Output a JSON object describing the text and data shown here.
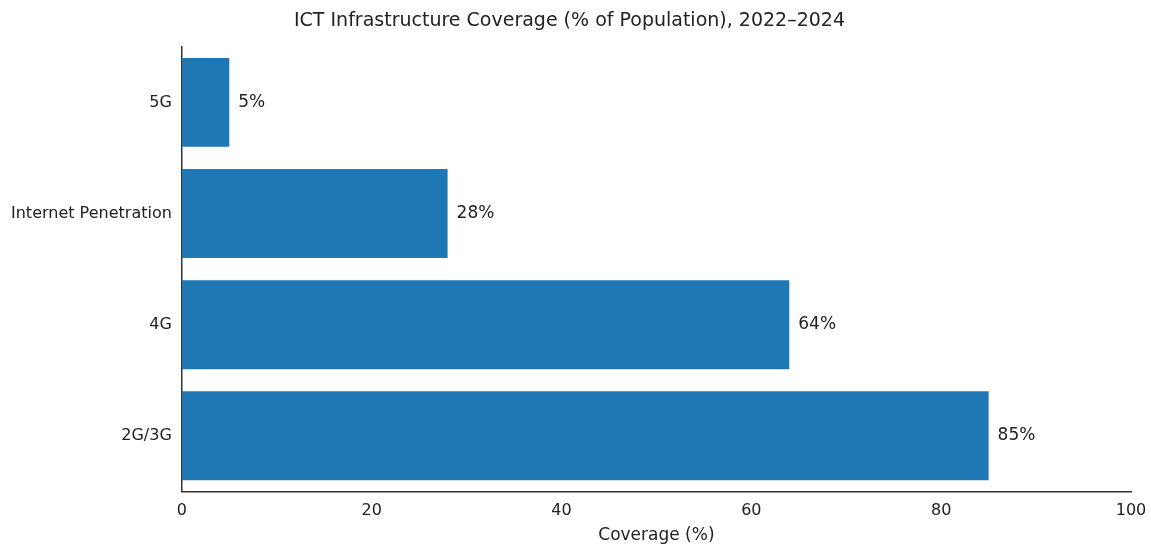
{
  "chart_data": {
    "type": "bar",
    "orientation": "horizontal",
    "title": "ICT Infrastructure Coverage (% of Population), 2022–2024",
    "xlabel": "Coverage (%)",
    "categories": [
      "5G",
      "Internet Penetration",
      "4G",
      "2G/3G"
    ],
    "values": [
      5,
      28,
      64,
      85
    ],
    "color": "#1f77b4",
    "value_labels": [
      "5%",
      "28%",
      "64%",
      "85%"
    ],
    "xlim": [
      0,
      100
    ],
    "xticks": [
      0,
      20,
      40,
      60,
      80,
      100
    ],
    "grid": false,
    "legend": false
  }
}
